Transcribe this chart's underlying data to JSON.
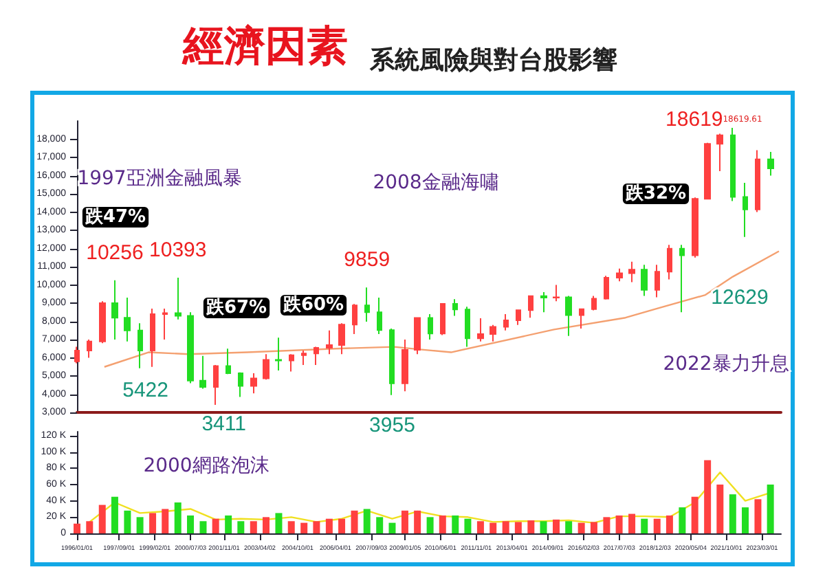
{
  "chart_data": [
    {
      "type": "candlestick",
      "title": "經濟因素",
      "subtitle": "系統風險與對台股影響",
      "x": [
        "1996-01",
        "1996-07",
        "1997-01",
        "1997-07",
        "1998-01",
        "1998-07",
        "1999-01",
        "1999-07",
        "2000-01",
        "2000-07",
        "2001-01",
        "2001-07",
        "2002-01",
        "2002-07",
        "2003-01",
        "2003-07",
        "2004-01",
        "2004-07",
        "2005-01",
        "2005-07",
        "2006-01",
        "2006-07",
        "2007-01",
        "2007-07",
        "2008-01",
        "2008-07",
        "2009-01",
        "2009-07",
        "2010-01",
        "2010-07",
        "2011-01",
        "2011-07",
        "2012-01",
        "2012-07",
        "2013-01",
        "2013-07",
        "2014-01",
        "2014-07",
        "2015-01",
        "2015-07",
        "2016-01",
        "2016-07",
        "2017-01",
        "2017-07",
        "2018-01",
        "2018-07",
        "2019-01",
        "2019-07",
        "2020-01",
        "2020-07",
        "2021-01",
        "2021-07",
        "2022-01",
        "2022-07",
        "2023-01",
        "2023-07"
      ],
      "ohlc": [
        [
          5800,
          6600,
          5700,
          6400
        ],
        [
          6400,
          7000,
          6000,
          6900
        ],
        [
          6900,
          9100,
          6800,
          9000
        ],
        [
          9000,
          10256,
          7000,
          8200
        ],
        [
          8200,
          9300,
          6900,
          7500
        ],
        [
          7500,
          7900,
          5422,
          6400
        ],
        [
          6400,
          8700,
          5500,
          8400
        ],
        [
          8400,
          8700,
          7000,
          8450
        ],
        [
          8450,
          10393,
          8100,
          8300
        ],
        [
          8300,
          8500,
          4600,
          4750
        ],
        [
          4750,
          6100,
          4300,
          4400
        ],
        [
          4400,
          5600,
          3411,
          5550
        ],
        [
          5550,
          6500,
          5100,
          5150
        ],
        [
          5150,
          5200,
          3850,
          4450
        ],
        [
          4450,
          5150,
          4050,
          4870
        ],
        [
          4870,
          6200,
          4800,
          5890
        ],
        [
          5890,
          7100,
          5300,
          5850
        ],
        [
          5850,
          6200,
          5250,
          6140
        ],
        [
          6140,
          6400,
          5600,
          6240
        ],
        [
          6240,
          6600,
          5600,
          6550
        ],
        [
          6550,
          7500,
          6200,
          6700
        ],
        [
          6700,
          7900,
          6200,
          7820
        ],
        [
          7820,
          8950,
          7300,
          8880
        ],
        [
          8880,
          9859,
          7980,
          8500
        ],
        [
          8500,
          9300,
          7300,
          7520
        ],
        [
          7520,
          7600,
          3955,
          4590
        ],
        [
          4590,
          7000,
          4160,
          6430
        ],
        [
          6430,
          8200,
          6200,
          8190
        ],
        [
          8190,
          8400,
          7000,
          7330
        ],
        [
          7330,
          8970,
          7250,
          8960
        ],
        [
          8960,
          9220,
          8300,
          8650
        ],
        [
          8650,
          8800,
          6600,
          7070
        ],
        [
          7070,
          8170,
          6900,
          7300
        ],
        [
          7300,
          7800,
          6900,
          7700
        ],
        [
          7700,
          8400,
          7500,
          8060
        ],
        [
          8060,
          8650,
          7800,
          8610
        ],
        [
          8610,
          9400,
          8200,
          9390
        ],
        [
          9390,
          9600,
          8500,
          9300
        ],
        [
          9300,
          10000,
          9100,
          9320
        ],
        [
          9320,
          9400,
          7200,
          8340
        ],
        [
          8340,
          8700,
          7600,
          8670
        ],
        [
          8670,
          9400,
          8600,
          9250
        ],
        [
          9250,
          10500,
          9200,
          10400
        ],
        [
          10400,
          10900,
          10200,
          10640
        ],
        [
          10640,
          11270,
          10150,
          10840
        ],
        [
          10840,
          11100,
          9400,
          9730
        ],
        [
          9730,
          11100,
          9320,
          10730
        ],
        [
          10730,
          12200,
          10300,
          11990
        ],
        [
          11990,
          12200,
          8500,
          11620
        ],
        [
          11620,
          14800,
          11500,
          14730
        ],
        [
          14730,
          17800,
          14700,
          17750
        ],
        [
          17750,
          18300,
          16250,
          18220
        ],
        [
          18220,
          18619,
          14600,
          14830
        ],
        [
          14830,
          15600,
          12629,
          14140
        ],
        [
          14140,
          17400,
          14000,
          16900
        ],
        [
          16900,
          17300,
          16000,
          16400
        ]
      ],
      "colors": [
        "#ff4040",
        "#ff4040",
        "#ff4040",
        "#22dd22",
        "#22dd22",
        "#22dd22",
        "#ff4040",
        "#ff4040",
        "#22dd22",
        "#22dd22",
        "#22dd22",
        "#ff4040",
        "#22dd22",
        "#22dd22",
        "#ff4040",
        "#ff4040",
        "#22dd22",
        "#ff4040",
        "#ff4040",
        "#ff4040",
        "#ff4040",
        "#ff4040",
        "#ff4040",
        "#22dd22",
        "#22dd22",
        "#22dd22",
        "#ff4040",
        "#ff4040",
        "#22dd22",
        "#ff4040",
        "#22dd22",
        "#22dd22",
        "#ff4040",
        "#ff4040",
        "#ff4040",
        "#ff4040",
        "#ff4040",
        "#22dd22",
        "#ff4040",
        "#22dd22",
        "#ff4040",
        "#ff4040",
        "#ff4040",
        "#ff4040",
        "#ff4040",
        "#22dd22",
        "#ff4040",
        "#ff4040",
        "#22dd22",
        "#ff4040",
        "#ff4040",
        "#ff4040",
        "#22dd22",
        "#22dd22",
        "#ff4040",
        "#22dd22"
      ],
      "series": [
        {
          "type": "line",
          "color": "#f4a070",
          "marker": "none",
          "x": [
            "1997-02",
            "1998-11",
            "2000-06",
            "2002-10",
            "2006-04",
            "2008-08",
            "2009-09",
            "2010-11",
            "2014-12",
            "2017-10",
            "2019-01",
            "2020-12",
            "2022-01",
            "2023-11"
          ],
          "values": [
            5500,
            6300,
            6200,
            6300,
            6500,
            6600,
            6450,
            6300,
            7550,
            8200,
            8700,
            9450,
            10450,
            11850
          ]
        }
      ],
      "xlim": [
        "1996-01-01",
        "2023-12-01"
      ],
      "ylim": [
        3000,
        19000
      ],
      "yticks": [
        {
          "value": 3000,
          "label": "3,000"
        },
        {
          "value": 4000,
          "label": "4,000"
        },
        {
          "value": 5000,
          "label": "5,000"
        },
        {
          "value": 6000,
          "label": "6,000"
        },
        {
          "value": 7000,
          "label": "7,000"
        },
        {
          "value": 8000,
          "label": "8,000"
        },
        {
          "value": 9000,
          "label": "9,000"
        },
        {
          "value": 10000,
          "label": "10,000"
        },
        {
          "value": 11000,
          "label": "11,000"
        },
        {
          "value": 12000,
          "label": "12,000"
        },
        {
          "value": 13000,
          "label": "13,000"
        },
        {
          "value": 14000,
          "label": "14,000"
        },
        {
          "value": 15000,
          "label": "15,000"
        },
        {
          "value": 16000,
          "label": "16,000"
        },
        {
          "value": 17000,
          "label": "17,000"
        },
        {
          "value": 18000,
          "label": "18,000"
        }
      ],
      "tick_labels": "y",
      "grid": false,
      "annotations": [
        "1997亞洲金融風暴",
        "2008金融海嘯",
        "2022暴力升息",
        "跌47%",
        "跌67%",
        "跌60%",
        "跌32%",
        "18619.61",
        {
          "text": "10256",
          "x": "1997-07",
          "y": 10256
        },
        {
          "text": "10393",
          "x": "2000-01",
          "y": 10393
        },
        {
          "text": "9859",
          "x": "2007-07",
          "y": 9859
        },
        {
          "text": "18619",
          "x": "2022-01",
          "y": 18619
        },
        {
          "text": "5422",
          "x": "1998-07",
          "y": 5422
        },
        {
          "text": "3411",
          "x": "2001-07",
          "y": 3411
        },
        {
          "text": "3955",
          "x": "2008-07",
          "y": 3955
        },
        {
          "text": "12629",
          "x": "2022-07",
          "y": 12629
        }
      ]
    },
    {
      "type": "bar",
      "x": [
        "1996-01",
        "1996-07",
        "1997-01",
        "1997-07",
        "1998-01",
        "1998-07",
        "1999-01",
        "1999-07",
        "2000-01",
        "2000-07",
        "2001-01",
        "2001-07",
        "2002-01",
        "2002-07",
        "2003-01",
        "2003-07",
        "2004-01",
        "2004-07",
        "2005-01",
        "2005-07",
        "2006-01",
        "2006-07",
        "2007-01",
        "2007-07",
        "2008-01",
        "2008-07",
        "2009-01",
        "2009-07",
        "2010-01",
        "2010-07",
        "2011-01",
        "2011-07",
        "2012-01",
        "2012-07",
        "2013-01",
        "2013-07",
        "2014-01",
        "2014-07",
        "2015-01",
        "2015-07",
        "2016-01",
        "2016-07",
        "2017-01",
        "2017-07",
        "2018-01",
        "2018-07",
        "2019-01",
        "2019-07",
        "2020-01",
        "2020-07",
        "2021-01",
        "2021-07",
        "2022-01",
        "2022-07",
        "2023-01",
        "2023-07"
      ],
      "series": [
        {
          "type": "bar",
          "values": [
            12,
            15,
            35,
            45,
            28,
            20,
            25,
            30,
            38,
            22,
            15,
            18,
            22,
            15,
            15,
            20,
            25,
            15,
            13,
            15,
            18,
            18,
            28,
            30,
            20,
            13,
            28,
            28,
            20,
            22,
            22,
            18,
            15,
            13,
            15,
            14,
            16,
            15,
            17,
            15,
            13,
            14,
            20,
            22,
            24,
            18,
            18,
            22,
            32,
            45,
            90,
            60,
            48,
            32,
            42,
            60
          ],
          "colors": [
            "#ff4040",
            "#ff4040",
            "#ff4040",
            "#22dd22",
            "#22dd22",
            "#22dd22",
            "#ff4040",
            "#ff4040",
            "#22dd22",
            "#22dd22",
            "#22dd22",
            "#ff4040",
            "#22dd22",
            "#22dd22",
            "#ff4040",
            "#ff4040",
            "#22dd22",
            "#ff4040",
            "#ff4040",
            "#ff4040",
            "#ff4040",
            "#ff4040",
            "#ff4040",
            "#22dd22",
            "#22dd22",
            "#22dd22",
            "#ff4040",
            "#ff4040",
            "#22dd22",
            "#ff4040",
            "#22dd22",
            "#22dd22",
            "#ff4040",
            "#ff4040",
            "#ff4040",
            "#ff4040",
            "#ff4040",
            "#22dd22",
            "#ff4040",
            "#22dd22",
            "#ff4040",
            "#ff4040",
            "#ff4040",
            "#ff4040",
            "#ff4040",
            "#22dd22",
            "#ff4040",
            "#ff4040",
            "#22dd22",
            "#ff4040",
            "#ff4040",
            "#ff4040",
            "#22dd22",
            "#22dd22",
            "#ff4040",
            "#22dd22"
          ]
        },
        {
          "type": "line",
          "color": "#f0e020",
          "marker": "none",
          "x": [
            "1996-07",
            "1997-07",
            "1998-07",
            "1999-07",
            "2000-07",
            "2001-07",
            "2002-07",
            "2003-07",
            "2004-07",
            "2005-07",
            "2006-07",
            "2007-07",
            "2008-07",
            "2009-07",
            "2010-07",
            "2011-07",
            "2012-07",
            "2013-07",
            "2014-07",
            "2015-07",
            "2016-07",
            "2017-07",
            "2018-07",
            "2019-07",
            "2020-07",
            "2021-07",
            "2022-07",
            "2023-07"
          ],
          "values": [
            14,
            38,
            25,
            27,
            30,
            17,
            18,
            17,
            20,
            14,
            18,
            28,
            18,
            27,
            21,
            20,
            14,
            15,
            15,
            16,
            13,
            21,
            21,
            20,
            38,
            75,
            40,
            50
          ]
        }
      ],
      "xlim": [
        "1996-01-01",
        "2023-12-01"
      ],
      "ylim": [
        0,
        125
      ],
      "xticks": [
        {
          "value": "1996-01-01",
          "label": "1996/01/01"
        },
        {
          "value": "1997-09-01",
          "label": "1997/09/01"
        },
        {
          "value": "1999-02-01",
          "label": "1999/02/01"
        },
        {
          "value": "2000-07-03",
          "label": "2000/07/03"
        },
        {
          "value": "2001-11-01",
          "label": "2001/11/01"
        },
        {
          "value": "2003-04-02",
          "label": "2003/04/02"
        },
        {
          "value": "2004-10-01",
          "label": "2004/10/01"
        },
        {
          "value": "2006-04-01",
          "label": "2006/04/01"
        },
        {
          "value": "2007-09-03",
          "label": "2007/09/03"
        },
        {
          "value": "2009-01-05",
          "label": "2009/01/05"
        },
        {
          "value": "2010-06-01",
          "label": "2010/06/01"
        },
        {
          "value": "2011-11-01",
          "label": "2011/11/01"
        },
        {
          "value": "2013-04-01",
          "label": "2013/04/01"
        },
        {
          "value": "2014-09-01",
          "label": "2014/09/01"
        },
        {
          "value": "2016-02-03",
          "label": "2016/02/03"
        },
        {
          "value": "2017-07-03",
          "label": "2017/07/03"
        },
        {
          "value": "2018-12-03",
          "label": "2018/12/03"
        },
        {
          "value": "2020-05-04",
          "label": "2020/05/04"
        },
        {
          "value": "2021-10-01",
          "label": "2021/10/01"
        },
        {
          "value": "2023-03-01",
          "label": "2023/03/01"
        }
      ],
      "yticks": [
        0,
        {
          "value": 20,
          "label": "20 K"
        },
        {
          "value": 40,
          "label": "40 K"
        },
        {
          "value": 60,
          "label": "60 K"
        },
        {
          "value": 80,
          "label": "80 K"
        },
        {
          "value": 100,
          "label": "100 K"
        },
        {
          "value": 120,
          "label": "120 K"
        }
      ],
      "grid": false,
      "annotations": [
        "2000網路泡沫"
      ]
    }
  ]
}
